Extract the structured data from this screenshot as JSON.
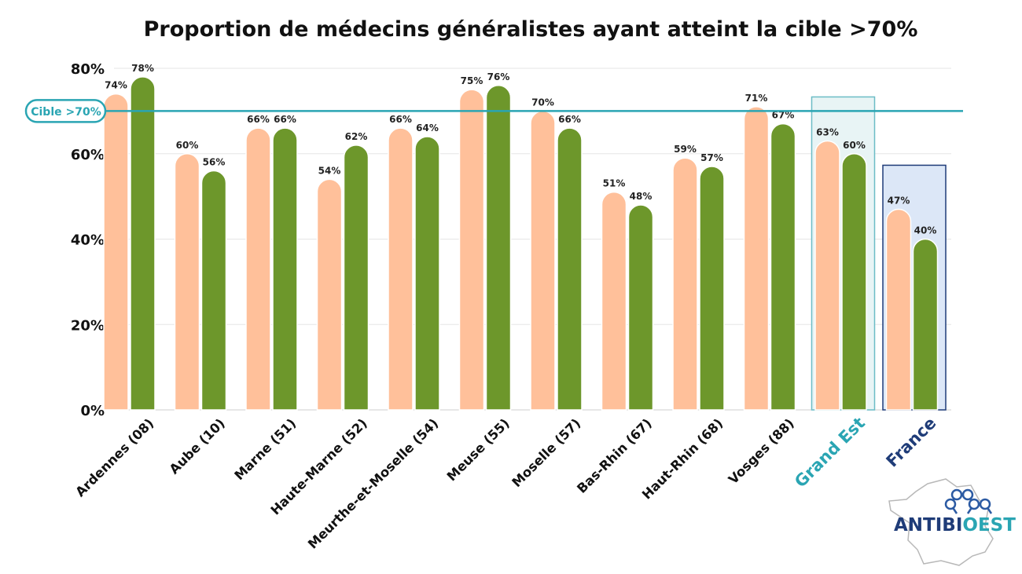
{
  "chart_data": {
    "type": "bar",
    "title": "Proportion de médecins généralistes ayant atteint la cible >70%",
    "xlabel": "",
    "ylabel": "",
    "ylim": [
      0,
      0.8
    ],
    "yticks": [
      "0%",
      "20%",
      "40%",
      "60%",
      "80%"
    ],
    "categories": [
      "Ardennes (08)",
      "Aube (10)",
      "Marne (51)",
      "Haute-Marne (52)",
      "Meurthe-et-Moselle (54)",
      "Meuse (55)",
      "Moselle (57)",
      "Bas-Rhin (67)",
      "Haut-Rhin (68)",
      "Vosges (88)",
      "Grand Est",
      "France"
    ],
    "series": [
      {
        "values": [
          0.74,
          0.6,
          0.66,
          0.54,
          0.66,
          0.75,
          0.7,
          0.51,
          0.59,
          0.71,
          0.63,
          0.47
        ],
        "labels": [
          "74%",
          "60%",
          "66%",
          "54%",
          "66%",
          "75%",
          "70%",
          "51%",
          "59%",
          "71%",
          "63%",
          "47%"
        ],
        "color": "#ffc09a"
      },
      {
        "values": [
          0.78,
          0.56,
          0.66,
          0.62,
          0.64,
          0.76,
          0.66,
          0.48,
          0.57,
          0.67,
          0.6,
          0.4
        ],
        "labels": [
          "78%",
          "56%",
          "66%",
          "62%",
          "64%",
          "76%",
          "66%",
          "48%",
          "57%",
          "67%",
          "60%",
          "40%"
        ],
        "color": "#6d972b"
      }
    ],
    "target": {
      "value": 0.7,
      "label": "Cible >70%",
      "color": "#2aa5b3"
    },
    "highlight": [
      {
        "category": "Grand Est",
        "label_color": "#2aa5b3",
        "fill": "#e8f4f5",
        "border": "#6cbcc6"
      },
      {
        "category": "France",
        "label_color": "#1f3c78",
        "fill": "#dce7f7",
        "border": "#1f3c78"
      }
    ],
    "grid": true,
    "legend": "none"
  },
  "logo": {
    "text_a": "ANTIBI",
    "text_b": "O",
    "text_c": "EST"
  }
}
